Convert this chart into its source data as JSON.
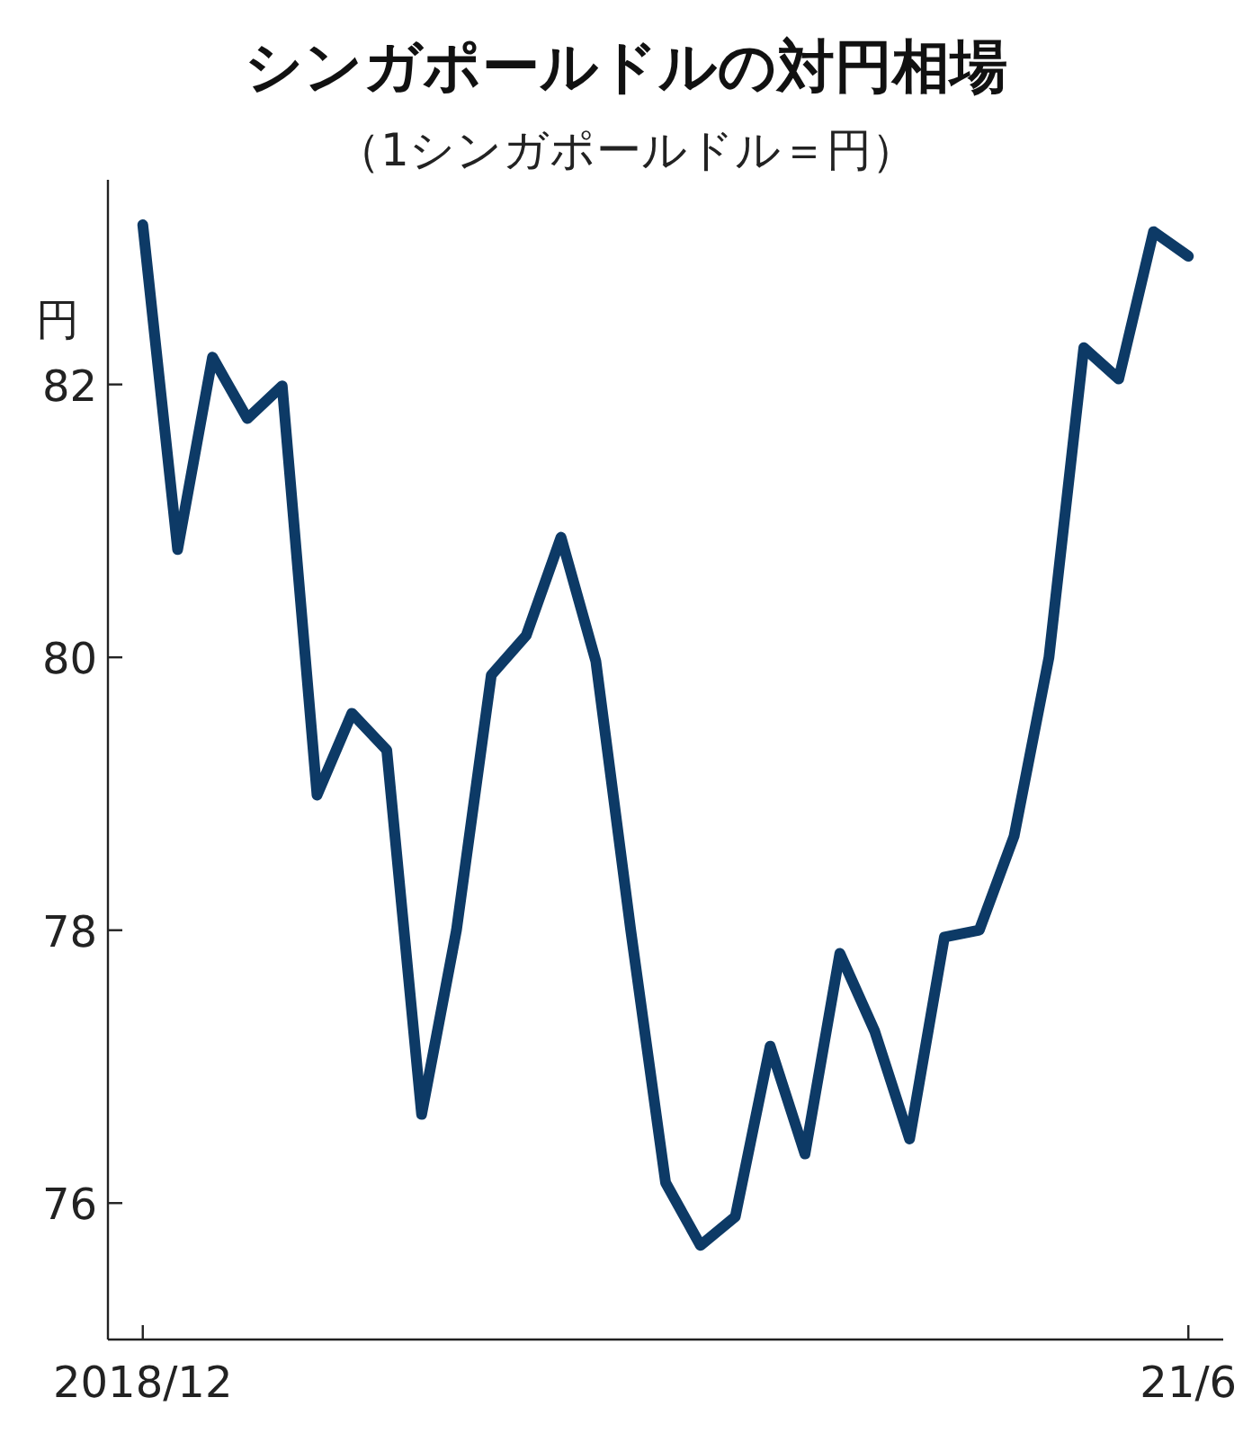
{
  "chart_data": {
    "type": "line",
    "title": "シンガポールドルの対円相場",
    "subtitle": "（1シンガポールドル＝円）",
    "ylabel": "円",
    "x": [
      "2018-12",
      "2019-01",
      "2019-02",
      "2019-03",
      "2019-04",
      "2019-05",
      "2019-06",
      "2019-07",
      "2019-08",
      "2019-09",
      "2019-10",
      "2019-11",
      "2019-12",
      "2020-01",
      "2020-02",
      "2020-03",
      "2020-04",
      "2020-05",
      "2020-06",
      "2020-07",
      "2020-08",
      "2020-09",
      "2020-10",
      "2020-11",
      "2020-12",
      "2021-01",
      "2021-02",
      "2021-03",
      "2021-04",
      "2021-05",
      "2021-06"
    ],
    "series": [
      {
        "color": "#0d3a66",
        "values": [
          83.17,
          80.79,
          82.2,
          81.75,
          81.99,
          78.99,
          79.59,
          79.32,
          76.65,
          78.0,
          79.87,
          80.16,
          80.88,
          79.97,
          78.0,
          76.15,
          75.69,
          75.9,
          77.15,
          76.36,
          77.83,
          77.26,
          76.47,
          77.95,
          78.0,
          78.69,
          80.0,
          82.27,
          82.04,
          83.12,
          82.94
        ]
      }
    ],
    "xlim": [
      "2018-11",
      "2021-07"
    ],
    "xticks": [
      {
        "value": "2018-12",
        "label": "2018/12"
      },
      {
        "value": "2021-06",
        "label": "21/6"
      }
    ],
    "ylim": [
      75,
      83.5
    ],
    "yticks": [
      76,
      78,
      80,
      82
    ],
    "grid": false,
    "marker": "none",
    "line_style": "solid"
  }
}
